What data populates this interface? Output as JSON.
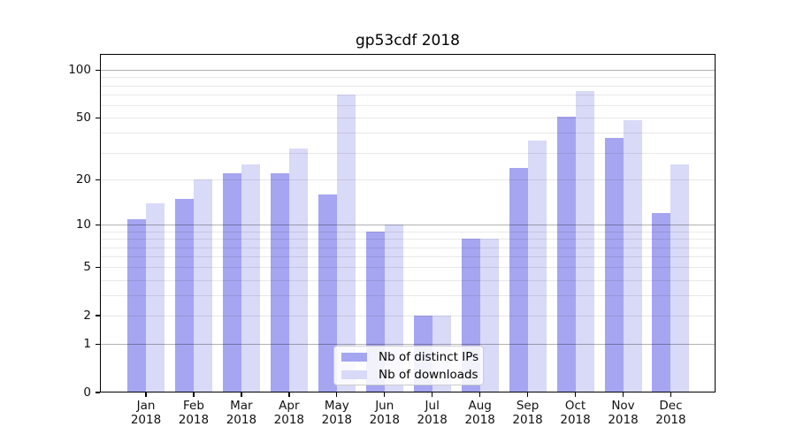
{
  "title": "gp53cdf 2018",
  "legend": {
    "entries": [
      {
        "label": "Nb of distinct IPs",
        "color": "#a5a5f1"
      },
      {
        "label": "Nb of downloads",
        "color": "#d9d9f8"
      }
    ]
  },
  "axes": {
    "year_line": "2018",
    "months": [
      "Jan",
      "Feb",
      "Mar",
      "Apr",
      "May",
      "Jun",
      "Jul",
      "Aug",
      "Sep",
      "Oct",
      "Nov",
      "Dec"
    ],
    "y_ticks": [
      0,
      1,
      2,
      5,
      10,
      20,
      50,
      100
    ],
    "y_major_gridlines": [
      1,
      10,
      100
    ],
    "y_minor_gridlines": [
      2,
      3,
      4,
      5,
      6,
      7,
      8,
      9,
      20,
      30,
      40,
      50,
      60,
      70,
      80,
      90
    ]
  },
  "chart_data": {
    "type": "bar",
    "title": "gp53cdf 2018",
    "categories": [
      "Jan 2018",
      "Feb 2018",
      "Mar 2018",
      "Apr 2018",
      "May 2018",
      "Jun 2018",
      "Jul 2018",
      "Aug 2018",
      "Sep 2018",
      "Oct 2018",
      "Nov 2018",
      "Dec 2018"
    ],
    "series": [
      {
        "name": "Nb of distinct IPs",
        "color": "#a5a5f1",
        "values": [
          11,
          15,
          22,
          22,
          16,
          9,
          2,
          8,
          24,
          51,
          37,
          12
        ]
      },
      {
        "name": "Nb of downloads",
        "color": "#d9d9f8",
        "values": [
          14,
          20,
          25,
          32,
          70,
          10,
          2,
          8,
          36,
          74,
          48,
          25
        ]
      }
    ],
    "xlabel": "",
    "ylabel": "",
    "y_axis": {
      "scale": "log1p (position proportional to log10(1+value))",
      "ticks": [
        0,
        1,
        2,
        5,
        10,
        20,
        50,
        100
      ],
      "range": [
        0,
        127
      ]
    },
    "grid": "horizontal major and minor gridlines drawn over bars",
    "legend_position": "lower center"
  }
}
